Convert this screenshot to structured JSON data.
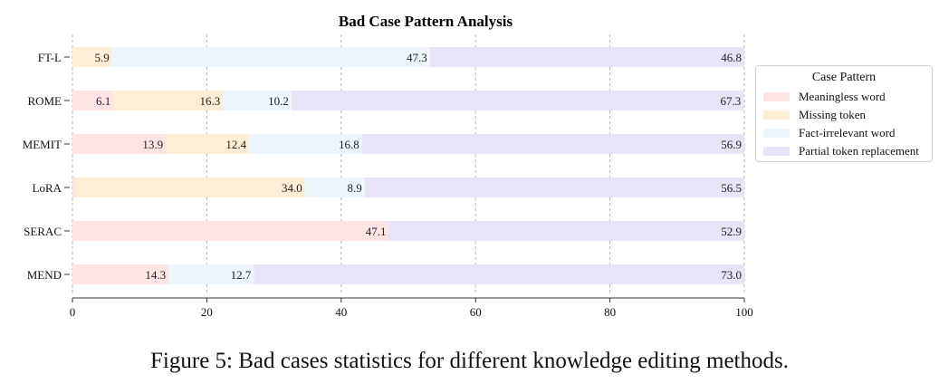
{
  "chart_data": {
    "type": "bar",
    "orientation": "horizontal",
    "stacked": true,
    "title": "Bad Case Pattern Analysis",
    "xlabel": "",
    "ylabel": "",
    "xlim": [
      0,
      100
    ],
    "xticks": [
      0,
      20,
      40,
      60,
      80,
      100
    ],
    "grid": "vertical dashed",
    "categories": [
      "FT-L",
      "ROME",
      "MEMIT",
      "LoRA",
      "SERAC",
      "MEND"
    ],
    "series": [
      {
        "name": "Meaningless word",
        "color": "#fde3e3",
        "values": [
          0,
          6.1,
          13.9,
          0.6,
          47.1,
          14.3
        ],
        "labels": [
          "",
          "6.1",
          "13.9",
          "",
          "47.1",
          "14.3"
        ]
      },
      {
        "name": "Missing token",
        "color": "#fdeed5",
        "values": [
          5.9,
          16.3,
          12.4,
          34.0,
          0,
          0
        ],
        "labels": [
          "5.9",
          "16.3",
          "12.4",
          "34.0",
          "",
          ""
        ]
      },
      {
        "name": "Fact-irrelevant word",
        "color": "#edf6fd",
        "values": [
          47.3,
          10.2,
          16.8,
          8.9,
          0,
          12.7
        ],
        "labels": [
          "47.3",
          "10.2",
          "16.8",
          "8.9",
          "",
          "12.7"
        ]
      },
      {
        "name": "Partial token replacement",
        "color": "#e6e4f7",
        "values": [
          46.8,
          67.3,
          56.9,
          56.5,
          52.9,
          73.0
        ],
        "labels": [
          "46.8",
          "67.3",
          "56.9",
          "56.5",
          "52.9",
          "73.0"
        ]
      }
    ],
    "legend": {
      "title": "Case Pattern",
      "position": "right"
    }
  },
  "caption": "Figure 5: Bad cases statistics for different knowledge editing methods."
}
